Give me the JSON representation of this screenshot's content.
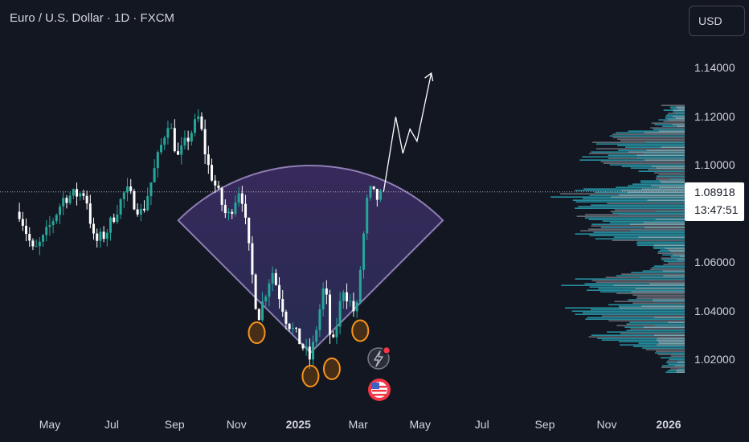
{
  "header": {
    "title": "Euro / U.S. Dollar · 1D · FXCM"
  },
  "toolbar": {
    "currency_label": "USD"
  },
  "price_tag": {
    "price": "1.08918",
    "countdown": "13:47:51"
  },
  "colors": {
    "background": "#131722",
    "up": "#26a69a",
    "down": "#ffffff",
    "cup": "#7b52ab",
    "marker": "#f7931a",
    "profile_teal": "#2aa3b5",
    "profile_grey": "#8a8d96"
  },
  "chart_data": {
    "type": "candlestick",
    "title": "Euro / U.S. Dollar · 1D · FXCM",
    "xlabel": "",
    "ylabel": "",
    "x_ticks": [
      {
        "label": "May",
        "date": "2024-05-01",
        "bold": false
      },
      {
        "label": "Jul",
        "date": "2024-07-01",
        "bold": false
      },
      {
        "label": "Sep",
        "date": "2024-09-01",
        "bold": false
      },
      {
        "label": "Nov",
        "date": "2024-11-01",
        "bold": false
      },
      {
        "label": "2025",
        "date": "2025-01-01",
        "bold": true
      },
      {
        "label": "Mar",
        "date": "2025-03-01",
        "bold": false
      },
      {
        "label": "May",
        "date": "2025-05-01",
        "bold": false
      },
      {
        "label": "Jul",
        "date": "2025-07-01",
        "bold": false
      },
      {
        "label": "Sep",
        "date": "2025-09-01",
        "bold": false
      },
      {
        "label": "Nov",
        "date": "2025-11-01",
        "bold": false
      },
      {
        "label": "2026",
        "date": "2026-01-01",
        "bold": true
      }
    ],
    "y_ticks": [
      "1.02000",
      "1.04000",
      "1.06000",
      "1.08000",
      "1.10000",
      "1.12000",
      "1.14000"
    ],
    "ylim": [
      1.0,
      1.16
    ],
    "last_price": 1.08918,
    "price_path": [
      [
        "2024-04-01",
        1.081
      ],
      [
        "2024-04-15",
        1.064
      ],
      [
        "2024-04-25",
        1.07
      ],
      [
        "2024-05-15",
        1.087
      ],
      [
        "2024-06-05",
        1.089
      ],
      [
        "2024-06-14",
        1.068
      ],
      [
        "2024-06-25",
        1.072
      ],
      [
        "2024-07-15",
        1.09
      ],
      [
        "2024-07-31",
        1.08
      ],
      [
        "2024-08-26",
        1.119
      ],
      [
        "2024-09-04",
        1.103
      ],
      [
        "2024-09-25",
        1.12
      ],
      [
        "2024-10-03",
        1.101
      ],
      [
        "2024-10-23",
        1.078
      ],
      [
        "2024-11-05",
        1.092
      ],
      [
        "2024-11-22",
        1.037
      ],
      [
        "2024-12-06",
        1.057
      ],
      [
        "2024-12-20",
        1.037
      ],
      [
        "2025-01-13",
        1.02
      ],
      [
        "2025-01-27",
        1.052
      ],
      [
        "2025-02-03",
        1.023
      ],
      [
        "2025-02-14",
        1.05
      ],
      [
        "2025-02-27",
        1.038
      ],
      [
        "2025-03-04",
        1.062
      ],
      [
        "2025-03-11",
        1.09
      ],
      [
        "2025-03-21",
        1.086
      ],
      [
        "2025-03-26",
        1.0892
      ]
    ],
    "projection": [
      [
        "2025-03-26",
        1.0892
      ],
      [
        "2025-04-07",
        1.12
      ],
      [
        "2025-04-14",
        1.105
      ],
      [
        "2025-04-21",
        1.115
      ],
      [
        "2025-04-28",
        1.11
      ],
      [
        "2025-05-12",
        1.138
      ]
    ],
    "bottom_markers": [
      "2024-11-21",
      "2025-01-13",
      "2025-02-03",
      "2025-03-03"
    ],
    "cup_pattern": {
      "center_date": "2025-01-13",
      "center_price": 1.023,
      "top_price": 1.1
    },
    "volume_profile": {
      "price_range": [
        1.015,
        1.125
      ]
    }
  }
}
